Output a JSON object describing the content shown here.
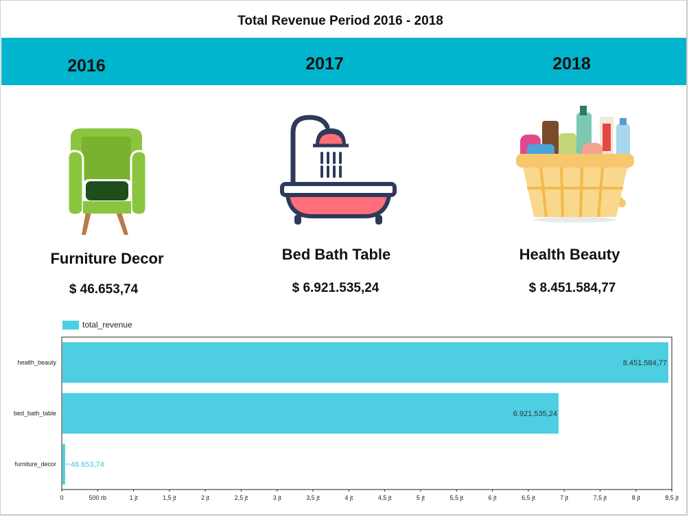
{
  "page": {
    "title": "Total Revenue Period 2016 - 2018"
  },
  "years": [
    {
      "year": "2016",
      "category": "Furniture Decor",
      "revenue": "$ 46.653,74",
      "icon": "armchair-icon"
    },
    {
      "year": "2017",
      "category": "Bed Bath Table",
      "revenue": "$ 6.921.535,24",
      "icon": "bathtub-icon"
    },
    {
      "year": "2018",
      "category": "Health Beauty",
      "revenue": "$ 8.451.584,77",
      "icon": "cosmetics-basket-icon"
    }
  ],
  "colors": {
    "band": "#00b5cd",
    "bar": "#4dcfe1",
    "bar_label_small": "#3cc4da"
  },
  "chart_data": {
    "type": "bar",
    "orientation": "horizontal",
    "categories": [
      "health_beauty",
      "bed_bath_table",
      "furniture_decor"
    ],
    "series": [
      {
        "name": "total_revenue",
        "values": [
          8451584.77,
          6921535.24,
          46653.74
        ]
      }
    ],
    "data_labels": [
      "8.451.584,77",
      "6.921.535,24",
      "46.653,74"
    ],
    "xlim": [
      0,
      8500000
    ],
    "ticks": [
      0,
      500000,
      1000000,
      1500000,
      2000000,
      2500000,
      3000000,
      3500000,
      4000000,
      4500000,
      5000000,
      5500000,
      6000000,
      6500000,
      7000000,
      7500000,
      8000000,
      8500000
    ],
    "tick_labels": [
      "0",
      "500 rb",
      "1 jt",
      "1,5 jt",
      "2 jt",
      "2,5 jt",
      "3 jt",
      "3,5 jt",
      "4 jt",
      "4,5 jt",
      "5 jt",
      "5,5 jt",
      "6 jt",
      "6,5 jt",
      "7 jt",
      "7,5 jt",
      "8 jt",
      "8,5 jt"
    ],
    "legend": "top-left",
    "grid": false
  }
}
